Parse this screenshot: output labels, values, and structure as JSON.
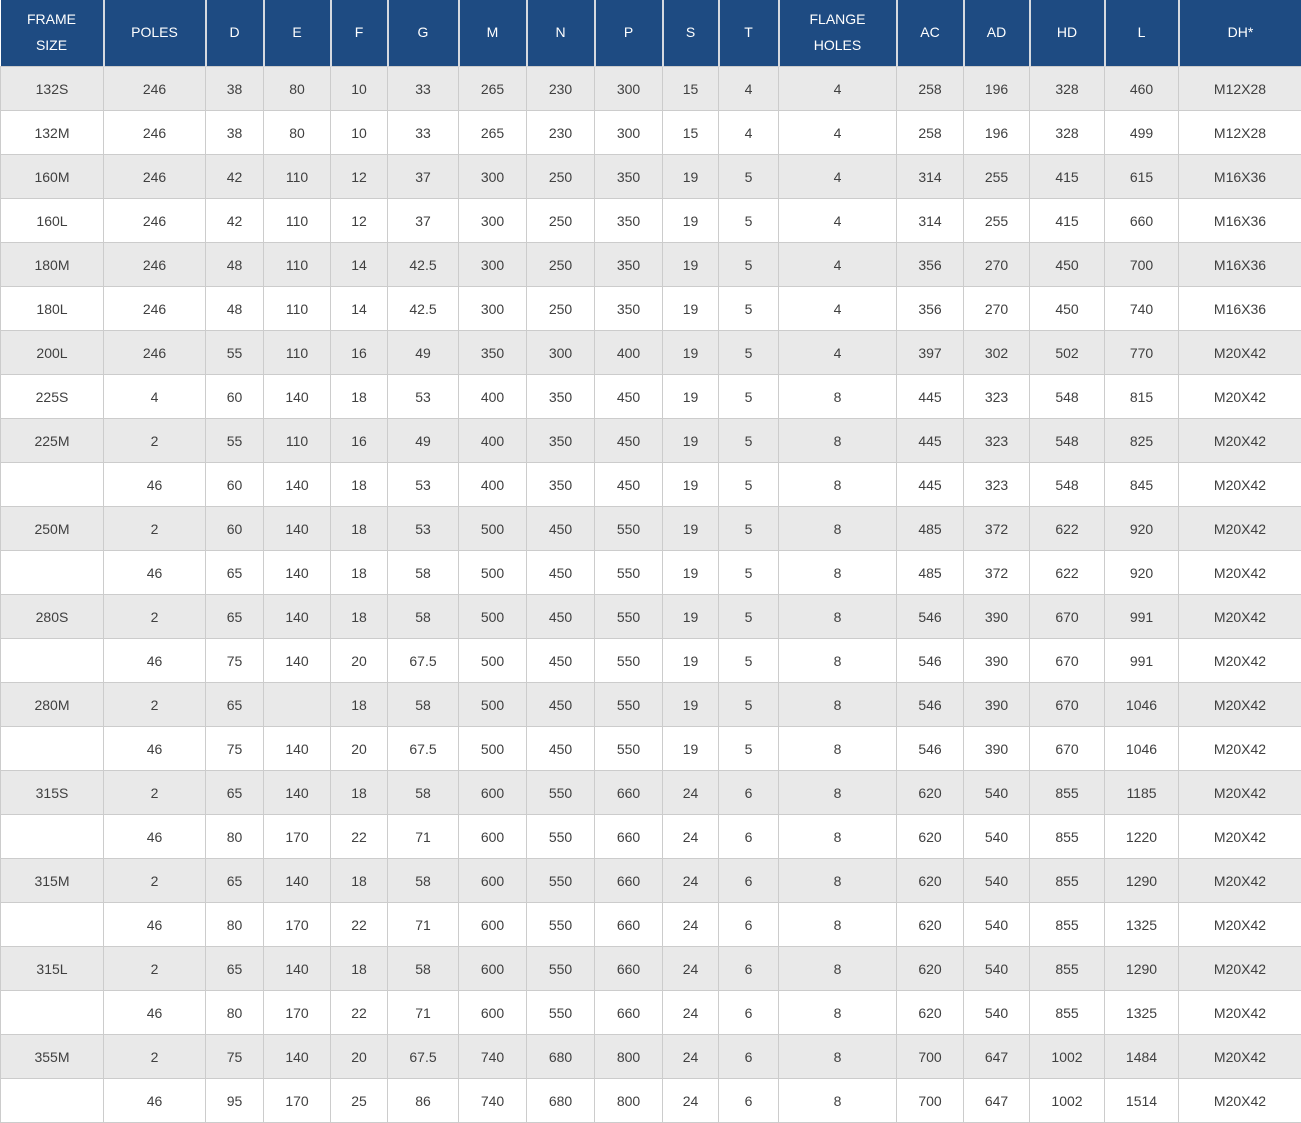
{
  "chart_data": {
    "type": "table",
    "columns": [
      "FRAME SIZE",
      "POLES",
      "D",
      "E",
      "F",
      "G",
      "M",
      "N",
      "P",
      "S",
      "T",
      "FLANGE HOLES",
      "AC",
      "AD",
      "HD",
      "L",
      "DH*"
    ],
    "rows": [
      [
        "132S",
        "246",
        "38",
        "80",
        "10",
        "33",
        "265",
        "230",
        "300",
        "15",
        "4",
        "4",
        "258",
        "196",
        "328",
        "460",
        "M12X28"
      ],
      [
        "132M",
        "246",
        "38",
        "80",
        "10",
        "33",
        "265",
        "230",
        "300",
        "15",
        "4",
        "4",
        "258",
        "196",
        "328",
        "499",
        "M12X28"
      ],
      [
        "160M",
        "246",
        "42",
        "110",
        "12",
        "37",
        "300",
        "250",
        "350",
        "19",
        "5",
        "4",
        "314",
        "255",
        "415",
        "615",
        "M16X36"
      ],
      [
        "160L",
        "246",
        "42",
        "110",
        "12",
        "37",
        "300",
        "250",
        "350",
        "19",
        "5",
        "4",
        "314",
        "255",
        "415",
        "660",
        "M16X36"
      ],
      [
        "180M",
        "246",
        "48",
        "110",
        "14",
        "42.5",
        "300",
        "250",
        "350",
        "19",
        "5",
        "4",
        "356",
        "270",
        "450",
        "700",
        "M16X36"
      ],
      [
        "180L",
        "246",
        "48",
        "110",
        "14",
        "42.5",
        "300",
        "250",
        "350",
        "19",
        "5",
        "4",
        "356",
        "270",
        "450",
        "740",
        "M16X36"
      ],
      [
        "200L",
        "246",
        "55",
        "110",
        "16",
        "49",
        "350",
        "300",
        "400",
        "19",
        "5",
        "4",
        "397",
        "302",
        "502",
        "770",
        "M20X42"
      ],
      [
        "225S",
        "4",
        "60",
        "140",
        "18",
        "53",
        "400",
        "350",
        "450",
        "19",
        "5",
        "8",
        "445",
        "323",
        "548",
        "815",
        "M20X42"
      ],
      [
        "225M",
        "2",
        "55",
        "110",
        "16",
        "49",
        "400",
        "350",
        "450",
        "19",
        "5",
        "8",
        "445",
        "323",
        "548",
        "825",
        "M20X42"
      ],
      [
        "",
        "46",
        "60",
        "140",
        "18",
        "53",
        "400",
        "350",
        "450",
        "19",
        "5",
        "8",
        "445",
        "323",
        "548",
        "845",
        "M20X42"
      ],
      [
        "250M",
        "2",
        "60",
        "140",
        "18",
        "53",
        "500",
        "450",
        "550",
        "19",
        "5",
        "8",
        "485",
        "372",
        "622",
        "920",
        "M20X42"
      ],
      [
        "",
        "46",
        "65",
        "140",
        "18",
        "58",
        "500",
        "450",
        "550",
        "19",
        "5",
        "8",
        "485",
        "372",
        "622",
        "920",
        "M20X42"
      ],
      [
        "280S",
        "2",
        "65",
        "140",
        "18",
        "58",
        "500",
        "450",
        "550",
        "19",
        "5",
        "8",
        "546",
        "390",
        "670",
        "991",
        "M20X42"
      ],
      [
        "",
        "46",
        "75",
        "140",
        "20",
        "67.5",
        "500",
        "450",
        "550",
        "19",
        "5",
        "8",
        "546",
        "390",
        "670",
        "991",
        "M20X42"
      ],
      [
        "280M",
        "2",
        "65",
        "",
        "18",
        "58",
        "500",
        "450",
        "550",
        "19",
        "5",
        "8",
        "546",
        "390",
        "670",
        "1046",
        "M20X42"
      ],
      [
        "",
        "46",
        "75",
        "140",
        "20",
        "67.5",
        "500",
        "450",
        "550",
        "19",
        "5",
        "8",
        "546",
        "390",
        "670",
        "1046",
        "M20X42"
      ],
      [
        "315S",
        "2",
        "65",
        "140",
        "18",
        "58",
        "600",
        "550",
        "660",
        "24",
        "6",
        "8",
        "620",
        "540",
        "855",
        "1185",
        "M20X42"
      ],
      [
        "",
        "46",
        "80",
        "170",
        "22",
        "71",
        "600",
        "550",
        "660",
        "24",
        "6",
        "8",
        "620",
        "540",
        "855",
        "1220",
        "M20X42"
      ],
      [
        "315M",
        "2",
        "65",
        "140",
        "18",
        "58",
        "600",
        "550",
        "660",
        "24",
        "6",
        "8",
        "620",
        "540",
        "855",
        "1290",
        "M20X42"
      ],
      [
        "",
        "46",
        "80",
        "170",
        "22",
        "71",
        "600",
        "550",
        "660",
        "24",
        "6",
        "8",
        "620",
        "540",
        "855",
        "1325",
        "M20X42"
      ],
      [
        "315L",
        "2",
        "65",
        "140",
        "18",
        "58",
        "600",
        "550",
        "660",
        "24",
        "6",
        "8",
        "620",
        "540",
        "855",
        "1290",
        "M20X42"
      ],
      [
        "",
        "46",
        "80",
        "170",
        "22",
        "71",
        "600",
        "550",
        "660",
        "24",
        "6",
        "8",
        "620",
        "540",
        "855",
        "1325",
        "M20X42"
      ],
      [
        "355M",
        "2",
        "75",
        "140",
        "20",
        "67.5",
        "740",
        "680",
        "800",
        "24",
        "6",
        "8",
        "700",
        "647",
        "1002",
        "1484",
        "M20X42"
      ],
      [
        "",
        "46",
        "95",
        "170",
        "25",
        "86",
        "740",
        "680",
        "800",
        "24",
        "6",
        "8",
        "700",
        "647",
        "1002",
        "1514",
        "M20X42"
      ]
    ],
    "layout": {
      "header_position": "top",
      "grid": true,
      "striped_rows": true
    }
  },
  "colors": {
    "header_bg": "#1e4b82",
    "header_text": "#ffffff",
    "row_stripe_bg": "#e9e9e9",
    "row_bg": "#ffffff",
    "cell_text": "#404040",
    "grid_border": "#cccccc"
  }
}
